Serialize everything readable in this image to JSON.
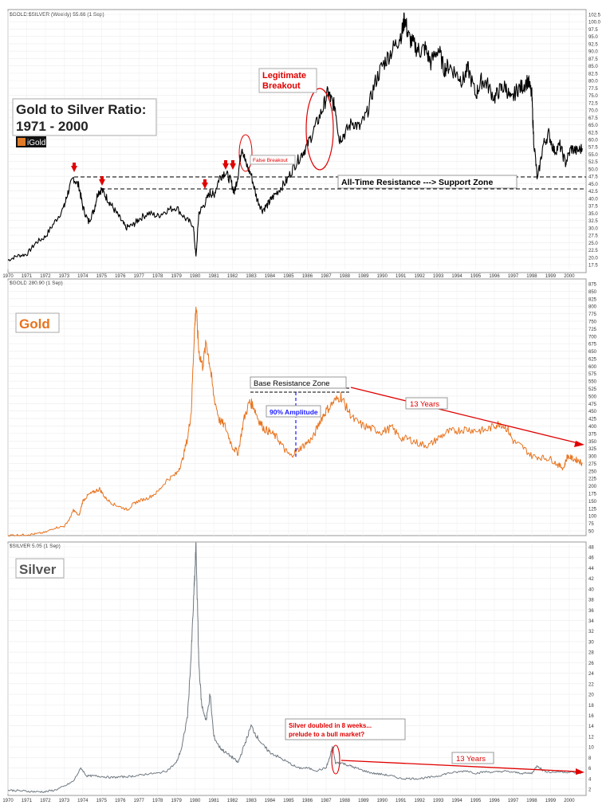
{
  "chart_data": [
    {
      "type": "line",
      "header": "$GOLD:$SILVER (Weekly) 55.66 (1 Sep)",
      "title_lines": [
        "Gold to Silver Ratio:",
        "1971 - 2000"
      ],
      "brand": "iGold",
      "ylim": [
        17.5,
        102.5
      ],
      "y_ticks": [
        "17.5",
        "20.0",
        "22.5",
        "25.0",
        "27.5",
        "30.0",
        "32.5",
        "35.0",
        "37.5",
        "40.0",
        "42.5",
        "45.0",
        "47.5",
        "50.0",
        "52.5",
        "55.0",
        "57.5",
        "60.0",
        "62.5",
        "65.0",
        "67.5",
        "70.0",
        "72.5",
        "75.0",
        "77.5",
        "80.0",
        "82.5",
        "85.0",
        "87.5",
        "90.0",
        "92.5",
        "95.0",
        "97.5",
        "100.0",
        "102.5"
      ],
      "x_ticks": [
        "1970",
        "1971",
        "1972",
        "1973",
        "1974",
        "1975",
        "1976",
        "1977",
        "1978",
        "1979",
        "1980",
        "1981",
        "1982",
        "1983",
        "1984",
        "1985",
        "1986",
        "1987",
        "1988",
        "1989",
        "1990",
        "1991",
        "1992",
        "1993",
        "1994",
        "1995",
        "1996",
        "1997",
        "1998",
        "1999",
        "2000"
      ],
      "series": [
        {
          "color": "#000000",
          "x": [
            1970.0,
            1970.5,
            1971.0,
            1971.5,
            1972.0,
            1972.5,
            1973.0,
            1973.2,
            1973.5,
            1973.8,
            1974.0,
            1974.3,
            1974.6,
            1974.8,
            1975.0,
            1975.3,
            1975.6,
            1976.0,
            1976.3,
            1976.7,
            1977.0,
            1977.5,
            1978.0,
            1978.5,
            1979.0,
            1979.5,
            1979.9,
            1980.05,
            1980.2,
            1980.5,
            1980.8,
            1981.0,
            1981.3,
            1981.6,
            1981.9,
            1982.1,
            1982.3,
            1982.5,
            1982.7,
            1983.0,
            1983.3,
            1983.6,
            1983.9,
            1984.1,
            1984.5,
            1984.9,
            1985.3,
            1985.7,
            1986.0,
            1986.4,
            1986.8,
            1987.1,
            1987.3,
            1987.5,
            1987.7,
            1988.0,
            1988.4,
            1988.8,
            1989.2,
            1989.6,
            1990.0,
            1990.4,
            1990.8,
            1991.1,
            1991.2,
            1991.4,
            1991.7,
            1992.0,
            1992.3,
            1992.6,
            1993.0,
            1993.3,
            1993.6,
            1994.0,
            1994.3,
            1994.6,
            1995.0,
            1995.3,
            1995.6,
            1996.0,
            1996.3,
            1996.6,
            1996.9,
            1997.2,
            1997.5,
            1997.8,
            1998.0,
            1998.1,
            1998.3,
            1998.6,
            1998.9,
            1999.2,
            1999.5,
            1999.8,
            2000.1,
            2000.4,
            2000.7
          ],
          "values": [
            19,
            20.5,
            21,
            25,
            27,
            32,
            37,
            42,
            47,
            44,
            37,
            32,
            36,
            42,
            43,
            40,
            37,
            33,
            30,
            31,
            33,
            35,
            34,
            36,
            37,
            33,
            31,
            20,
            35,
            38,
            42,
            41,
            47,
            49,
            46,
            42,
            48,
            58,
            52,
            48,
            40,
            36,
            38,
            40,
            43,
            46,
            51,
            55,
            58,
            64,
            70,
            76,
            73,
            71,
            60,
            62,
            66,
            64,
            69,
            79,
            85,
            89,
            93,
            97,
            101.5,
            95,
            92,
            90,
            91,
            86,
            91,
            84,
            85,
            82,
            80,
            84,
            75,
            80,
            79,
            74,
            77,
            78,
            73,
            77,
            78,
            80,
            75,
            60,
            46,
            58,
            62,
            56,
            58,
            52,
            57,
            56,
            57
          ]
        }
      ],
      "annotations": {
        "breakout": "Legitimate\nBreakout",
        "false_breakout": "False Breakout",
        "zone": "All-Time Resistance ---> Support Zone"
      }
    },
    {
      "type": "line",
      "header": "$GOLD 280.90 (1 Sep)",
      "label": "Gold",
      "ylim": [
        50,
        875
      ],
      "y_ticks": [
        "50",
        "75",
        "100",
        "125",
        "150",
        "175",
        "200",
        "225",
        "250",
        "275",
        "300",
        "325",
        "350",
        "375",
        "400",
        "425",
        "450",
        "475",
        "500",
        "525",
        "550",
        "575",
        "600",
        "625",
        "650",
        "675",
        "700",
        "725",
        "750",
        "775",
        "800",
        "825",
        "850",
        "875"
      ],
      "series": [
        {
          "color": "#e8731d",
          "x": [
            1970.0,
            1970.5,
            1971.0,
            1971.5,
            1972.0,
            1972.5,
            1973.0,
            1973.3,
            1973.5,
            1973.8,
            1974.0,
            1974.3,
            1974.6,
            1974.9,
            1975.2,
            1975.6,
            1976.0,
            1976.4,
            1976.7,
            1977.0,
            1977.5,
            1978.0,
            1978.5,
            1979.0,
            1979.3,
            1979.6,
            1979.8,
            1979.95,
            1980.05,
            1980.2,
            1980.4,
            1980.6,
            1980.8,
            1981.0,
            1981.3,
            1981.6,
            1982.0,
            1982.3,
            1982.6,
            1982.9,
            1983.1,
            1983.4,
            1983.7,
            1984.0,
            1984.4,
            1984.8,
            1985.1,
            1985.5,
            1985.9,
            1986.3,
            1986.7,
            1987.0,
            1987.4,
            1987.8,
            1988.1,
            1988.5,
            1989.0,
            1989.5,
            1990.0,
            1990.5,
            1991.0,
            1991.5,
            1992.0,
            1992.5,
            1993.0,
            1993.5,
            1994.0,
            1994.5,
            1995.0,
            1995.5,
            1996.0,
            1996.3,
            1996.7,
            1997.0,
            1997.5,
            1998.0,
            1998.5,
            1999.0,
            1999.4,
            1999.7,
            1999.9,
            2000.2,
            2000.5,
            2000.7
          ],
          "values": [
            35,
            36,
            37,
            40,
            45,
            60,
            65,
            90,
            120,
            100,
            150,
            170,
            180,
            190,
            160,
            140,
            130,
            120,
            140,
            150,
            160,
            180,
            220,
            240,
            280,
            360,
            450,
            700,
            800,
            650,
            600,
            680,
            600,
            500,
            420,
            400,
            330,
            310,
            420,
            480,
            470,
            420,
            390,
            380,
            360,
            320,
            300,
            320,
            340,
            360,
            420,
            450,
            480,
            500,
            460,
            420,
            400,
            390,
            380,
            395,
            360,
            355,
            340,
            335,
            360,
            380,
            385,
            390,
            385,
            385,
            400,
            410,
            390,
            350,
            330,
            300,
            295,
            290,
            270,
            260,
            300,
            290,
            285,
            275
          ]
        }
      ],
      "annotations": {
        "resistance": "Base Resistance Zone",
        "amplitude": "90% Amplitude",
        "years": "13 Years"
      }
    },
    {
      "type": "line",
      "header": "$SILVER 5.05 (1 Sep)",
      "label": "Silver",
      "ylim": [
        2,
        48
      ],
      "y_ticks": [
        "2",
        "4",
        "6",
        "8",
        "10",
        "12",
        "14",
        "16",
        "18",
        "20",
        "22",
        "24",
        "26",
        "28",
        "30",
        "32",
        "34",
        "36",
        "38",
        "40",
        "42",
        "44",
        "46",
        "48"
      ],
      "x_ticks": [
        "1970",
        "1971",
        "1972",
        "1973",
        "1974",
        "1975",
        "1976",
        "1977",
        "1978",
        "1979",
        "1980",
        "1981",
        "1982",
        "1983",
        "1984",
        "1985",
        "1986",
        "1987",
        "1988",
        "1989",
        "1990",
        "1991",
        "1992",
        "1993",
        "1994",
        "1995",
        "1996",
        "1997",
        "1998",
        "1999",
        "2000"
      ],
      "series": [
        {
          "color": "#6f7880",
          "x": [
            1970.0,
            1970.5,
            1971.0,
            1971.5,
            1972.0,
            1972.5,
            1973.0,
            1973.5,
            1973.9,
            1974.2,
            1974.6,
            1975.0,
            1975.5,
            1976.0,
            1976.5,
            1977.0,
            1977.5,
            1978.0,
            1978.5,
            1979.0,
            1979.3,
            1979.6,
            1979.8,
            1979.95,
            1980.05,
            1980.2,
            1980.35,
            1980.6,
            1980.8,
            1981.0,
            1981.3,
            1981.6,
            1982.0,
            1982.3,
            1982.6,
            1983.0,
            1983.3,
            1983.7,
            1984.0,
            1984.5,
            1985.0,
            1985.5,
            1986.0,
            1986.5,
            1987.0,
            1987.2,
            1987.35,
            1987.5,
            1987.8,
            1988.2,
            1988.6,
            1989.0,
            1989.5,
            1990.0,
            1990.5,
            1991.0,
            1991.5,
            1992.0,
            1992.5,
            1993.0,
            1993.5,
            1994.0,
            1994.5,
            1995.0,
            1995.5,
            1996.0,
            1996.5,
            1997.0,
            1997.5,
            1998.0,
            1998.3,
            1998.6,
            1999.0,
            1999.5,
            2000.0,
            2000.5,
            2000.7
          ],
          "values": [
            1.8,
            1.7,
            1.6,
            1.5,
            1.5,
            1.8,
            2.5,
            3.5,
            6.0,
            4.5,
            4.5,
            4.4,
            4.2,
            4.3,
            4.4,
            4.6,
            4.9,
            5.0,
            5.5,
            7.0,
            10,
            16,
            28,
            40,
            48,
            26,
            18,
            15,
            20,
            12,
            10,
            9,
            8,
            7,
            10,
            14,
            12,
            10,
            9,
            8,
            7,
            6,
            6,
            5.5,
            6,
            8,
            10,
            7,
            7,
            6.5,
            6,
            5.5,
            5,
            4.8,
            4.5,
            4,
            4,
            4,
            4.2,
            4.5,
            5,
            5.2,
            5.5,
            5,
            5.3,
            5.2,
            5.4,
            5.2,
            5,
            5,
            6.5,
            5.5,
            5.2,
            5.3,
            5.2,
            5.1,
            5.05
          ]
        }
      ],
      "annotations": {
        "note": "Silver doubled in 8 weeks...\nprelude to a bull market?",
        "years": "13 Years"
      }
    }
  ]
}
